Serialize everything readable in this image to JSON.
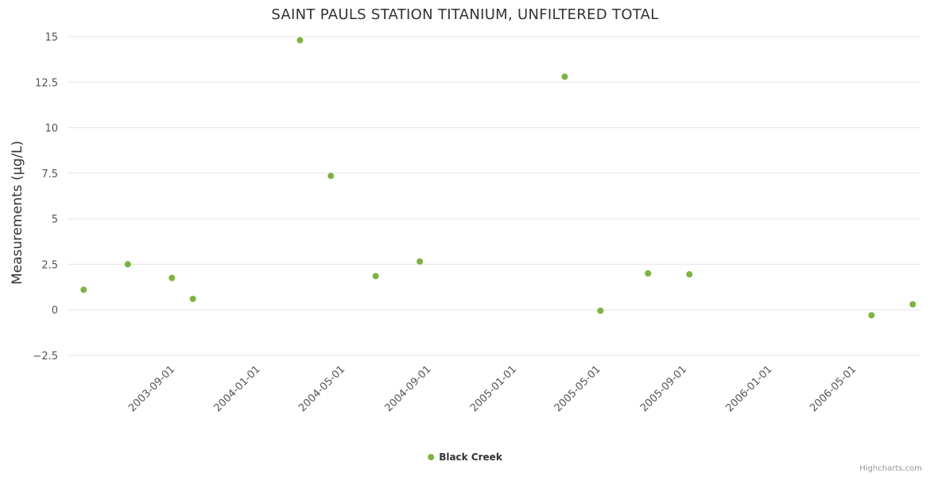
{
  "credits": "Highcharts.com",
  "chart_data": {
    "type": "scatter",
    "title": "SAINT PAULS STATION TITANIUM, UNFILTERED TOTAL",
    "xlabel": "",
    "ylabel": "Measurements (µg/L)",
    "ylim": [
      -2.5,
      15
    ],
    "yticks": [
      {
        "value": -2.5,
        "label": "−2.5"
      },
      {
        "value": 0,
        "label": "0"
      },
      {
        "value": 2.5,
        "label": "2.5"
      },
      {
        "value": 5,
        "label": "5"
      },
      {
        "value": 7.5,
        "label": "7.5"
      },
      {
        "value": 10,
        "label": "10"
      },
      {
        "value": 12.5,
        "label": "12.5"
      },
      {
        "value": 15,
        "label": "15"
      }
    ],
    "xlim": [
      "2003-04-05",
      "2006-08-05"
    ],
    "xticks": [
      "2003-09-01",
      "2004-01-01",
      "2004-05-01",
      "2004-09-01",
      "2005-01-01",
      "2005-05-01",
      "2005-09-01",
      "2006-01-01",
      "2006-05-01"
    ],
    "grid": true,
    "legend_position": "bottom",
    "series": [
      {
        "name": "Black Creek",
        "color": "#7cb342",
        "marker": "circle",
        "points": [
          {
            "x": "2003-04-28",
            "y": 1.1
          },
          {
            "x": "2003-06-30",
            "y": 2.5
          },
          {
            "x": "2003-09-01",
            "y": 1.75
          },
          {
            "x": "2003-10-01",
            "y": 0.6
          },
          {
            "x": "2004-03-02",
            "y": 14.8
          },
          {
            "x": "2004-04-15",
            "y": 7.35
          },
          {
            "x": "2004-06-18",
            "y": 1.85
          },
          {
            "x": "2004-08-20",
            "y": 2.65
          },
          {
            "x": "2005-03-15",
            "y": 12.8
          },
          {
            "x": "2005-05-05",
            "y": -0.05
          },
          {
            "x": "2005-07-12",
            "y": 2.0
          },
          {
            "x": "2005-09-09",
            "y": 1.95
          },
          {
            "x": "2006-05-27",
            "y": -0.3
          },
          {
            "x": "2006-07-25",
            "y": 0.3
          }
        ]
      }
    ]
  }
}
